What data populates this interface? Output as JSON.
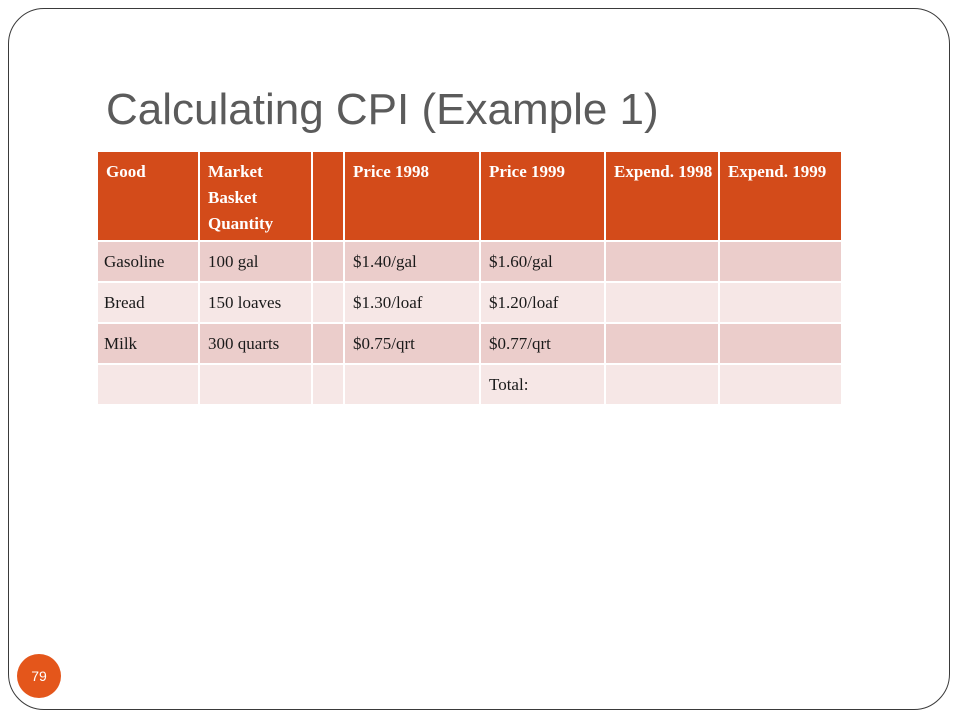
{
  "slide": {
    "title": "Calculating CPI (Example 1)",
    "page_number": "79"
  },
  "table": {
    "headers": [
      "Good",
      "Market Basket Quantity",
      "",
      "Price 1998",
      "Price 1999",
      "Expend. 1998",
      "Expend. 1999"
    ],
    "rows": [
      [
        "Gasoline",
        "100 gal",
        "",
        "$1.40/gal",
        "$1.60/gal",
        "",
        ""
      ],
      [
        "Bread",
        "150 loaves",
        "",
        "$1.30/loaf",
        "$1.20/loaf",
        "",
        ""
      ],
      [
        "Milk",
        "300 quarts",
        "",
        "$0.75/qrt",
        "$0.77/qrt",
        "",
        ""
      ],
      [
        "",
        "",
        "",
        "",
        "Total:",
        "",
        ""
      ]
    ]
  },
  "colors": {
    "header_bg": "#d34b1a",
    "row_odd_bg": "#ebcdcb",
    "row_even_bg": "#f6e7e6",
    "title_text": "#5b5b5b",
    "badge_bg": "#e4561b"
  }
}
